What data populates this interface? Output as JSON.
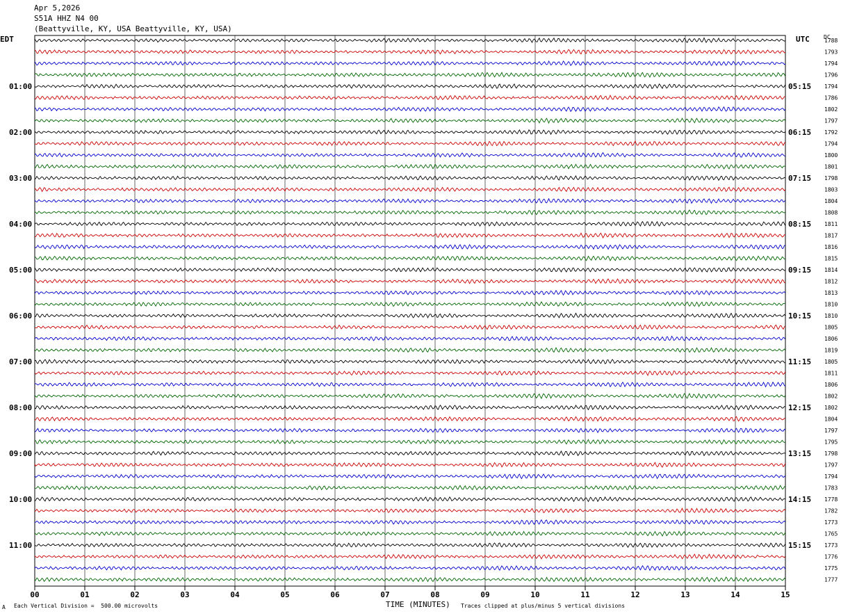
{
  "header": {
    "date": "Apr 5,2026",
    "channel": "S51A HHZ N4 00",
    "location": "(Beattyville, KY, USA Beattyville, KY, USA)"
  },
  "left_tz": "EDT",
  "right_tz": "UTC",
  "right_col_title": "DC",
  "footer": {
    "scale_note": "Each Vertical Division =  500.00 microvolts",
    "x_title": "TIME (MINUTES)",
    "clip_note": "Traces clipped at plus/minus 5 vertical divisions",
    "corner_mark": "A"
  },
  "chart_data": {
    "type": "line",
    "title": "S51A HHZ N4 00",
    "xlabel": "TIME (MINUTES)",
    "xlim": [
      0,
      15
    ],
    "x_ticks": [
      "00",
      "01",
      "02",
      "03",
      "04",
      "05",
      "06",
      "07",
      "08",
      "09",
      "10",
      "11",
      "12",
      "13",
      "14",
      "15"
    ],
    "rows_per_hour": 4,
    "row_colors": [
      "#000000",
      "#cc0000",
      "#0000cc",
      "#006600"
    ],
    "left_hour_labels": [
      "01:00",
      "02:00",
      "03:00",
      "04:00",
      "05:00",
      "06:00",
      "07:00",
      "08:00",
      "09:00",
      "10:00",
      "11:00"
    ],
    "right_hour_labels": [
      "05:15",
      "06:15",
      "07:15",
      "08:15",
      "09:15",
      "10:15",
      "11:15",
      "12:15",
      "13:15",
      "14:15",
      "15:15"
    ],
    "trace_dc_values": [
      "1788",
      "1793",
      "1794",
      "1796",
      "1794",
      "1786",
      "1802",
      "1797",
      "1792",
      "1794",
      "1800",
      "1801",
      "1798",
      "1803",
      "1804",
      "1808",
      "1811",
      "1817",
      "1816",
      "1815",
      "1814",
      "1812",
      "1813",
      "1810",
      "1810",
      "1805",
      "1806",
      "1819",
      "1805",
      "1811",
      "1806",
      "1802",
      "1802",
      "1804",
      "1797",
      "1795",
      "1798",
      "1797",
      "1794",
      "1783",
      "1778",
      "1782",
      "1773",
      "1765",
      "1773",
      "1776",
      "1775",
      "1777"
    ]
  },
  "colors": {
    "background": "#ffffff",
    "grid": "#000000"
  }
}
